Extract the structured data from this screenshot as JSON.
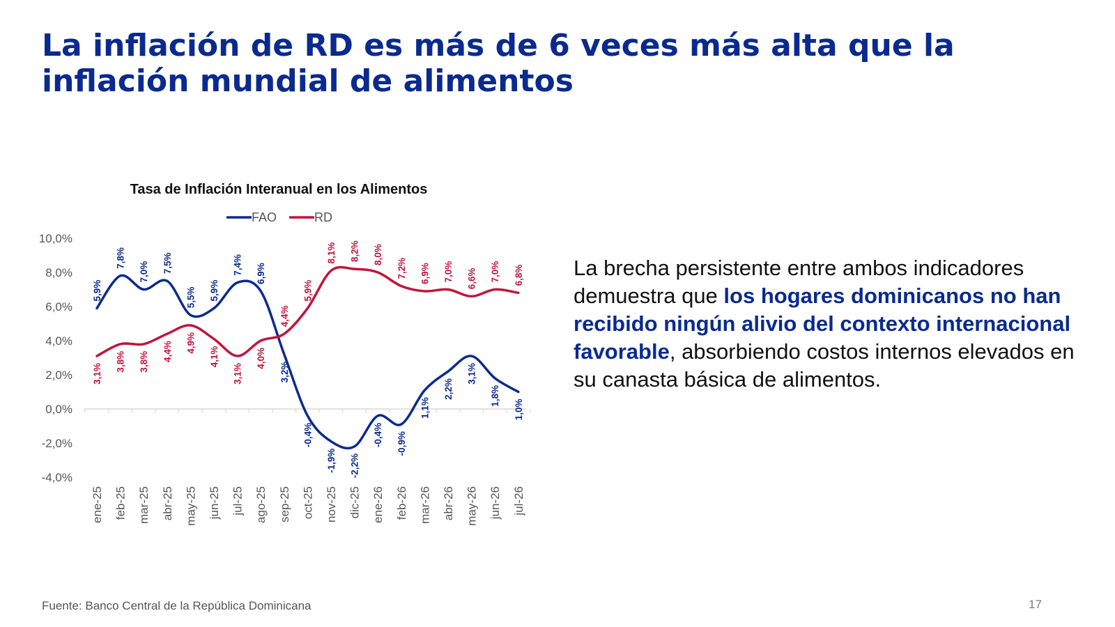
{
  "slide": {
    "title": "La inflación de RD es más de 6 veces más alta que la inflación mundial de alimentos",
    "body_plain_1": "La brecha persistente entre ambos indicadores demuestra que ",
    "body_highlight": "los hogares dominicanos no han recibido ningún alivio del contexto internacional favorable",
    "body_plain_2": ", absorbiendo costos internos elevados en su canasta básica de alimentos.",
    "source": "Fuente: Banco Central de la República Dominicana",
    "page_number": "17"
  },
  "colors": {
    "title": "#0a2a8f",
    "highlight": "#0a2a8f",
    "fao": "#0a2a8f",
    "rd": "#c0143c"
  },
  "chart_data": {
    "type": "line",
    "title": "Tasa de Inflación Interanual en los Alimentos",
    "xlabel": "",
    "ylabel": "",
    "categories": [
      "ene-25",
      "feb-25",
      "mar-25",
      "abr-25",
      "may-25",
      "jun-25",
      "jul-25",
      "ago-25",
      "sep-25",
      "oct-25",
      "nov-25",
      "dic-25",
      "ene-26",
      "feb-26",
      "mar-26",
      "abr-26",
      "may-26",
      "jun-26",
      "jul-26"
    ],
    "series": [
      {
        "name": "FAO",
        "color": "#0a2a8f",
        "values": [
          5.9,
          7.8,
          7.0,
          7.5,
          5.5,
          5.9,
          7.4,
          6.9,
          3.2,
          -0.4,
          -1.9,
          -2.2,
          -0.4,
          -0.9,
          1.1,
          2.2,
          3.1,
          1.8,
          1.0
        ],
        "labels": [
          "5,9%",
          "7,8%",
          "7,0%",
          "7,5%",
          "5,5%",
          "5,9%",
          "7,4%",
          "6,9%",
          "3,2%",
          "-0,4%",
          "-1,9%",
          "-2,2%",
          "-0,4%",
          "-0,9%",
          "1,1%",
          "2,2%",
          "3,1%",
          "1,8%",
          "1,0%"
        ]
      },
      {
        "name": "RD",
        "color": "#c0143c",
        "values": [
          3.1,
          3.8,
          3.8,
          4.4,
          4.9,
          4.1,
          3.1,
          4.0,
          4.4,
          5.9,
          8.1,
          8.2,
          8.0,
          7.2,
          6.9,
          7.0,
          6.6,
          7.0,
          6.8
        ],
        "labels": [
          "3,1%",
          "3,8%",
          "3,8%",
          "4,4%",
          "4,9%",
          "4,1%",
          "3,1%",
          "4,0%",
          "4,4%",
          "5,9%",
          "8,1%",
          "8,2%",
          "8,0%",
          "7,2%",
          "6,9%",
          "7,0%",
          "6,6%",
          "7,0%",
          "6,8%"
        ]
      }
    ],
    "ylim": [
      -4,
      10
    ],
    "yticks": [
      10,
      8,
      6,
      4,
      2,
      0,
      -2,
      -4
    ],
    "ytick_labels": [
      "10,0%",
      "8,0%",
      "6,0%",
      "4,0%",
      "2,0%",
      "0,0%",
      "-2,0%",
      "-4,0%"
    ],
    "grid": false,
    "legend_position": "top-center"
  }
}
